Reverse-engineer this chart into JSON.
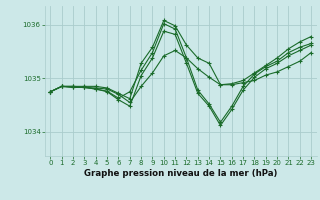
{
  "title": "Graphe pression niveau de la mer (hPa)",
  "bg_color": "#cce8e8",
  "grid_color": "#aacccc",
  "line_color": "#1a6b2a",
  "xlim": [
    -0.5,
    23.5
  ],
  "ylim": [
    1033.55,
    1036.35
  ],
  "yticks": [
    1034,
    1035,
    1036
  ],
  "ytick_labels": [
    "1034",
    "1035",
    "1036"
  ],
  "xticks": [
    0,
    1,
    2,
    3,
    4,
    5,
    6,
    7,
    8,
    9,
    10,
    11,
    12,
    13,
    14,
    15,
    16,
    17,
    18,
    19,
    20,
    21,
    22,
    23
  ],
  "series": [
    [
      1034.75,
      1034.85,
      1034.85,
      1034.83,
      1034.82,
      1034.8,
      1034.7,
      1034.55,
      1034.85,
      1035.1,
      1035.42,
      1035.52,
      1035.38,
      1035.18,
      1035.02,
      1034.88,
      1034.88,
      1034.92,
      1034.96,
      1035.06,
      1035.12,
      1035.22,
      1035.32,
      1035.48
    ],
    [
      1034.75,
      1034.85,
      1034.83,
      1034.83,
      1034.8,
      1034.75,
      1034.6,
      1034.48,
      1035.05,
      1035.38,
      1035.88,
      1035.82,
      1035.28,
      1034.72,
      1034.48,
      1034.12,
      1034.42,
      1034.78,
      1035.02,
      1035.18,
      1035.28,
      1035.42,
      1035.52,
      1035.62
    ],
    [
      1034.75,
      1034.85,
      1034.83,
      1034.83,
      1034.8,
      1034.76,
      1034.63,
      1034.75,
      1035.15,
      1035.48,
      1036.02,
      1035.92,
      1035.38,
      1034.78,
      1034.52,
      1034.18,
      1034.48,
      1034.85,
      1035.08,
      1035.22,
      1035.32,
      1035.48,
      1035.58,
      1035.65
    ],
    [
      1034.75,
      1034.85,
      1034.85,
      1034.85,
      1034.85,
      1034.82,
      1034.72,
      1034.62,
      1035.28,
      1035.58,
      1036.08,
      1035.98,
      1035.62,
      1035.38,
      1035.28,
      1034.88,
      1034.9,
      1034.96,
      1035.1,
      1035.24,
      1035.38,
      1035.55,
      1035.68,
      1035.78
    ]
  ]
}
